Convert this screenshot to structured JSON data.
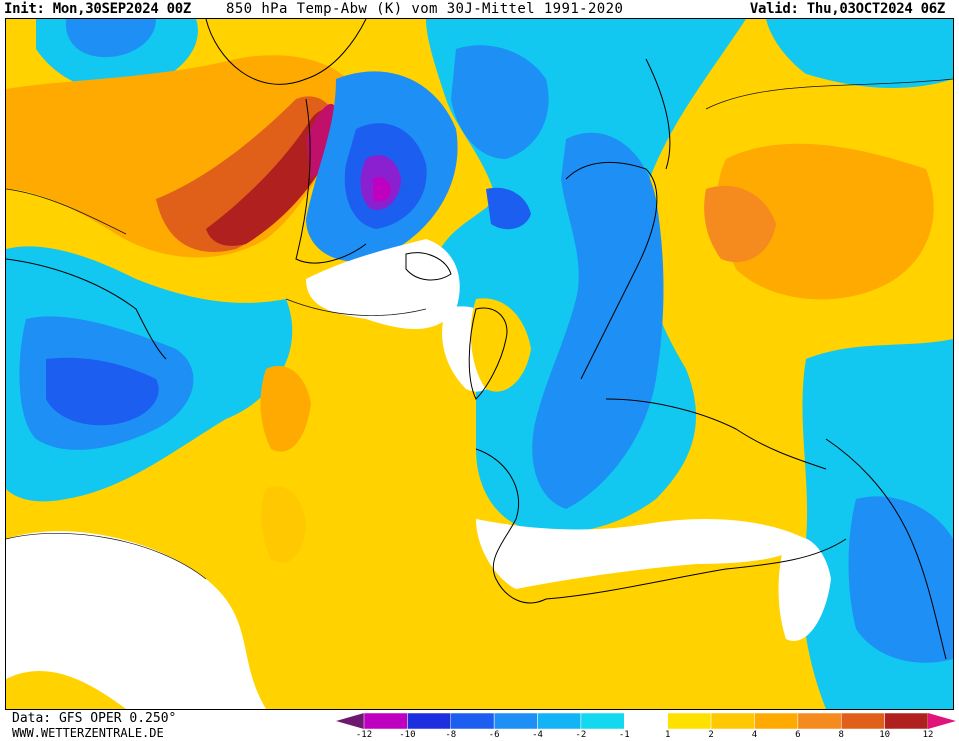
{
  "header": {
    "init": "Init: Mon,30SEP2024 00Z",
    "title": "850 hPa Temp-Abw (K) vom 30J-Mittel 1991-2020",
    "valid": "Valid: Thu,03OCT2024 06Z"
  },
  "footer": {
    "data_source": "Data: GFS OPER 0.250°",
    "credit": "WWW.WETTERZENTRALE.DE"
  },
  "legend": {
    "ticks": [
      "-12",
      "-10",
      "-8",
      "-6",
      "-4",
      "-2",
      "-1",
      "1",
      "2",
      "4",
      "6",
      "8",
      "10",
      "12"
    ],
    "colors": [
      "#6b1a6e",
      "#c000c0",
      "#1e2fe0",
      "#1c5ef0",
      "#1e8ff5",
      "#12b4f5",
      "#12d8f0",
      "#ffffff",
      "#ffe100",
      "#ffc800",
      "#ffaa00",
      "#f58a1e",
      "#e0601a",
      "#b0201e",
      "#e0157a"
    ]
  },
  "colors": {
    "cold_strong": "#c000c0",
    "cold": "#1e6ff0",
    "cool": "#12c8f0",
    "neutral": "#ffffff",
    "warm": "#ffd200",
    "hot": "#ff9a10",
    "very_hot": "#c02020"
  }
}
